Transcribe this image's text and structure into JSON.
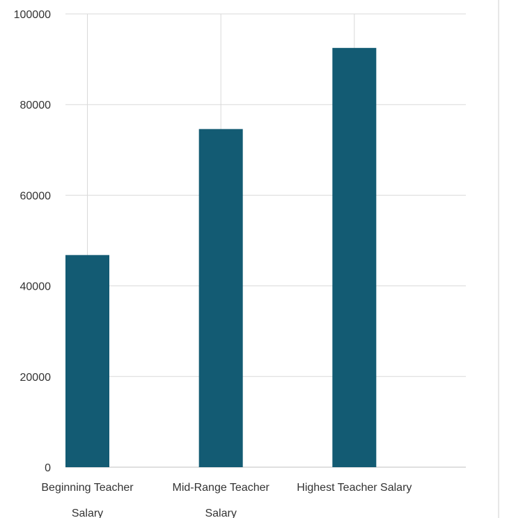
{
  "chart_data": {
    "type": "bar",
    "categories": [
      [
        "Beginning Teacher",
        "Salary"
      ],
      [
        "Mid-Range Teacher",
        "Salary"
      ],
      [
        "Highest Teacher Salary"
      ]
    ],
    "values": [
      46800,
      74600,
      92500
    ],
    "yticks": [
      "0",
      "20000",
      "40000",
      "60000",
      "80000",
      "100000"
    ],
    "ylim": [
      0,
      100000
    ],
    "title": "",
    "xlabel": "",
    "ylabel": "",
    "legend": "none",
    "grid": true,
    "colors": {
      "bar": "#135b73",
      "grid": "#d9d9d9",
      "axis": "#bfbfbf",
      "text": "#333333"
    }
  }
}
